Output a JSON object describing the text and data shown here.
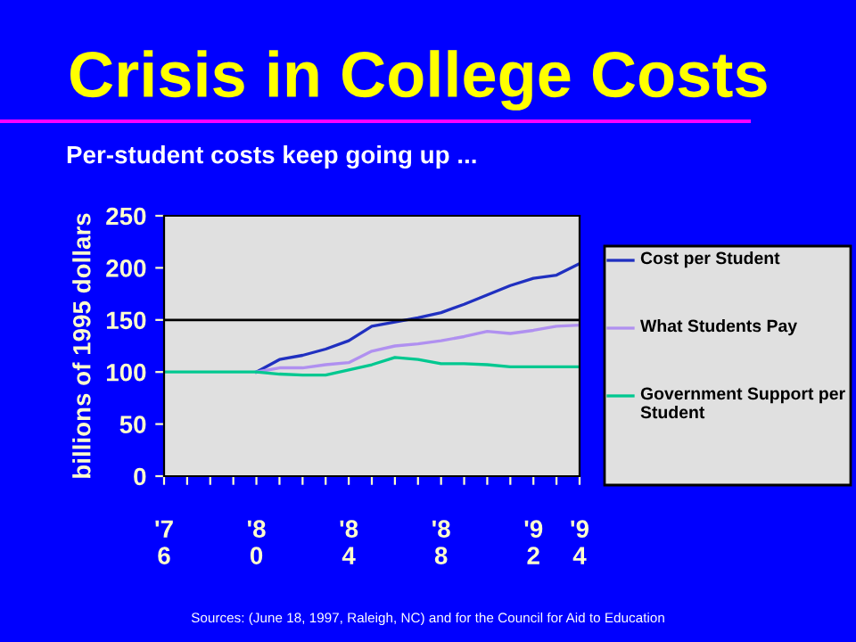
{
  "chart_data": {
    "type": "line",
    "title": "Crisis in College Costs",
    "subtitle": "Per-student costs keep going up ...",
    "ylabel": "billions of 1995 dollars",
    "categories": [
      "'7\n6",
      null,
      null,
      null,
      "'8\n0",
      null,
      null,
      null,
      "'8\n4",
      null,
      null,
      null,
      "'8\n8",
      null,
      null,
      null,
      "'9\n2",
      null,
      "'9\n4"
    ],
    "series": [
      {
        "name": "Cost per Student",
        "color": "#2030c0",
        "values": [
          null,
          null,
          null,
          null,
          100,
          112,
          116,
          122,
          130,
          144,
          148,
          152,
          157,
          165,
          174,
          183,
          190,
          193,
          204
        ]
      },
      {
        "name": "What Students Pay",
        "color": "#b090f0",
        "values": [
          null,
          null,
          null,
          null,
          100,
          104,
          104,
          107,
          109,
          120,
          125,
          127,
          130,
          134,
          139,
          137,
          140,
          144,
          145
        ]
      },
      {
        "name": "Government Support per Student",
        "color": "#00c890",
        "values": [
          100,
          100,
          100,
          100,
          100,
          98,
          97,
          97,
          102,
          107,
          114,
          112,
          108,
          108,
          107,
          105,
          105,
          105,
          105
        ]
      }
    ],
    "ylim": [
      0,
      250
    ],
    "yticks": [
      0,
      50,
      100,
      150,
      200,
      250
    ],
    "ref_lines": [
      {
        "axis": "y",
        "value": 150,
        "color": "#000000"
      }
    ],
    "grid": false,
    "legend": "right",
    "marker": "none",
    "line_style": "solid",
    "annotations": [
      "Sources: (June 18, 1997, Raleigh, NC) and for the Council for Aid to Education"
    ]
  }
}
